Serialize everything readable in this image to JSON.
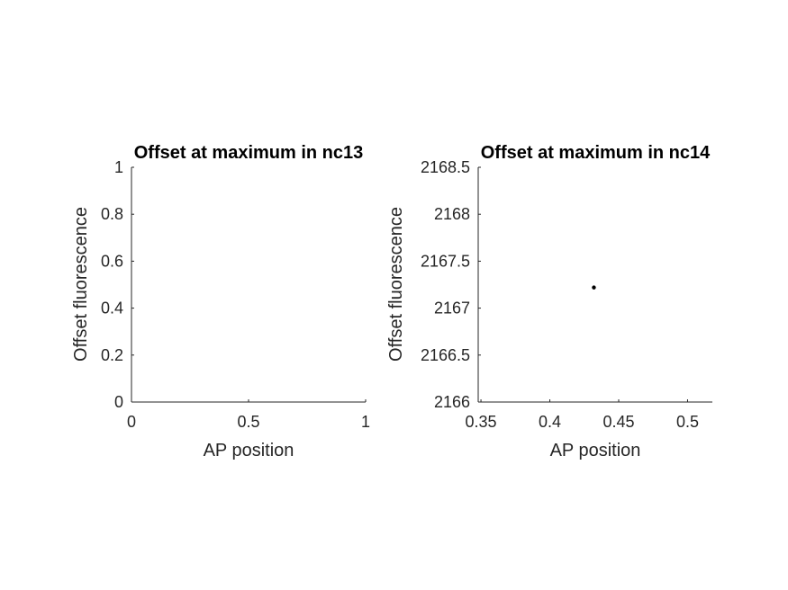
{
  "chart_data": [
    {
      "type": "scatter",
      "title": "Offset at maximum in nc13",
      "xlabel": "AP position",
      "ylabel": "Offset fluorescence",
      "xlim": [
        0,
        1
      ],
      "ylim": [
        0,
        1
      ],
      "xticks": [
        0,
        0.5,
        1
      ],
      "xtick_labels": [
        "0",
        "0.5",
        "1"
      ],
      "yticks": [
        0,
        0.2,
        0.4,
        0.6,
        0.8,
        1
      ],
      "ytick_labels": [
        "0",
        "0.2",
        "0.4",
        "0.6",
        "0.8",
        "1"
      ],
      "grid": false,
      "legend": "none",
      "points": []
    },
    {
      "type": "scatter",
      "title": "Offset at maximum in nc14",
      "xlabel": "AP position",
      "ylabel": "Offset fluorescence",
      "xlim": [
        0.348,
        0.518
      ],
      "ylim": [
        2166,
        2168.5
      ],
      "xticks": [
        0.35,
        0.4,
        0.45,
        0.5
      ],
      "xtick_labels": [
        "0.35",
        "0.4",
        "0.45",
        "0.5"
      ],
      "yticks": [
        2166,
        2166.5,
        2167,
        2167.5,
        2168,
        2168.5
      ],
      "ytick_labels": [
        "2166",
        "2166.5",
        "2167",
        "2167.5",
        "2168",
        "2168.5"
      ],
      "grid": false,
      "legend": "none",
      "points": [
        {
          "x": 0.432,
          "y": 2167.22
        }
      ],
      "marker_color": "#000000"
    }
  ]
}
